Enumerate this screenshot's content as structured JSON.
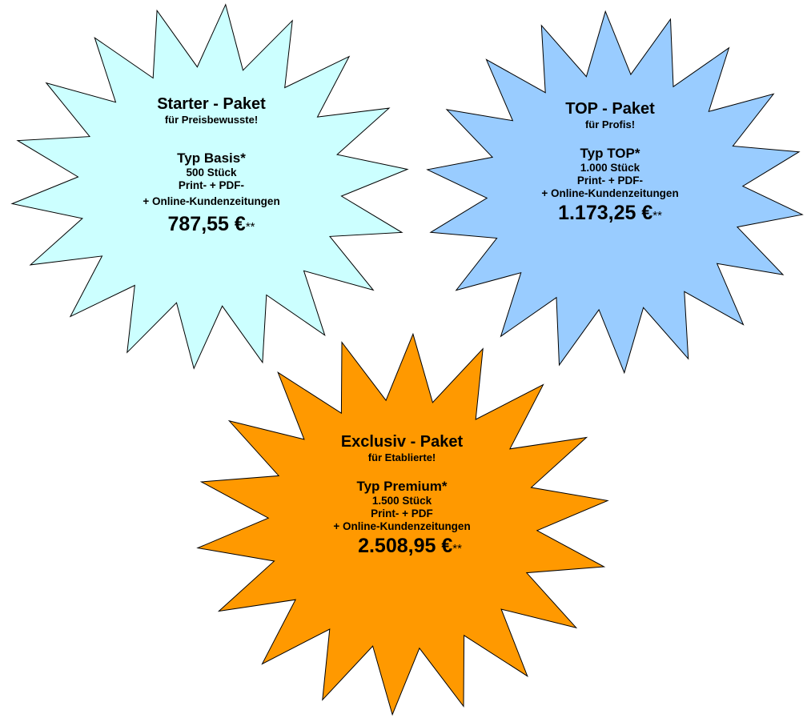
{
  "packages": [
    {
      "title": "Starter - Paket",
      "subtitle": "für Preisbewusste!",
      "type": "Typ Basis*",
      "quantity": "500 Stück",
      "line1": "Print- + PDF-",
      "line2": "+ Online-Kundenzeitungen",
      "price": "787,55 €",
      "price_note": "**",
      "color": "#ccffff"
    },
    {
      "title": "TOP - Paket",
      "subtitle": "für Profis!",
      "type": "Typ TOP*",
      "quantity": "1.000 Stück",
      "line1": "Print- + PDF-",
      "line2": "+ Online-Kundenzeitungen",
      "price": "1.173,25 €",
      "price_note": "**",
      "color": "#99ccff"
    },
    {
      "title": "Exclusiv - Paket",
      "subtitle": "für Etablierte!",
      "type": "Typ Premium*",
      "quantity": "1.500 Stück",
      "line1": "Print- + PDF",
      "line2": "+ Online-Kundenzeitungen",
      "price": "2.508,95 €",
      "price_note": "**",
      "color": "#ff9900"
    }
  ]
}
